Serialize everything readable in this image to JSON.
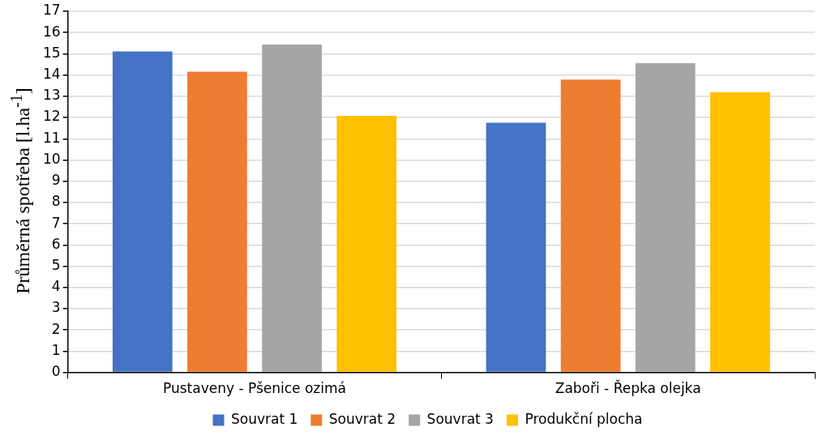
{
  "chart_data": {
    "type": "bar",
    "ylabel": "Průměrná spotřeba [l.ha$^{-1}$]",
    "categories": [
      "Pustaveny - Pšenice ozimá",
      "Zaboři - Řepka olejka"
    ],
    "series": [
      {
        "name": "Souvrat 1",
        "color": "#4472c4",
        "values": [
          15.11,
          11.75
        ]
      },
      {
        "name": "Souvrat 2",
        "color": "#ed7d31",
        "values": [
          14.16,
          13.79
        ]
      },
      {
        "name": "Souvrat 3",
        "color": "#a5a5a5",
        "values": [
          15.44,
          14.56
        ]
      },
      {
        "name": "Produkční plocha",
        "color": "#ffc000",
        "values": [
          12.08,
          13.19
        ]
      }
    ],
    "ylim": [
      0,
      17
    ],
    "yticks": [
      0,
      1,
      2,
      3,
      4,
      5,
      6,
      7,
      8,
      9,
      10,
      11,
      12,
      13,
      14,
      15,
      16,
      17
    ],
    "grid": "y",
    "legend": "bottom"
  }
}
